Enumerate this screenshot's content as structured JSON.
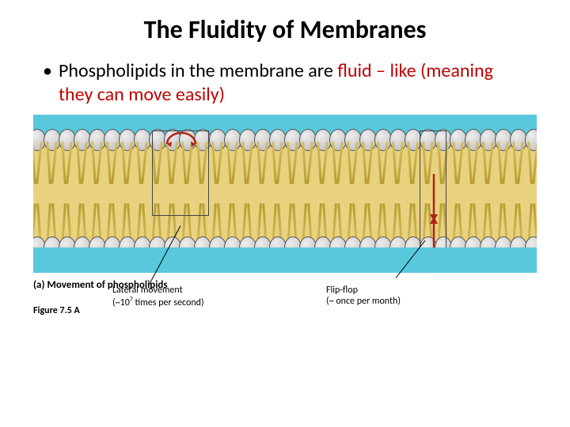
{
  "title": "The Fluidity of Membranes",
  "title_fontsize": 32,
  "bullet_leadin": "Phospholipids in the membrane are ",
  "bullet_highlight": "fluid – like (meaning they can move easily)",
  "bullet_fontsize": 24,
  "diagram": {
    "bg_water_color": "#59c8dc",
    "bg_core_color": "#e8d280",
    "head_fill": "#c9c9c9",
    "head_stroke": "#555555",
    "tail_color": "#d6bf5a",
    "tail_dark": "#b89c32",
    "box_stroke": "#444444",
    "arrow_color": "#b02418",
    "lipid_count": 35,
    "labels": {
      "lateral_l1": "Lateral movement",
      "lateral_l2_a": "(~10",
      "lateral_l2_sup": "7",
      "lateral_l2_b": " times per second)",
      "flip_l1": "Flip-flop",
      "flip_l2": "(~ once per month)"
    }
  },
  "caption": "(a) Movement of phospholipids",
  "figref": "Figure 7.5 A",
  "colors": {
    "highlight": "#c00000",
    "text": "#000000"
  }
}
